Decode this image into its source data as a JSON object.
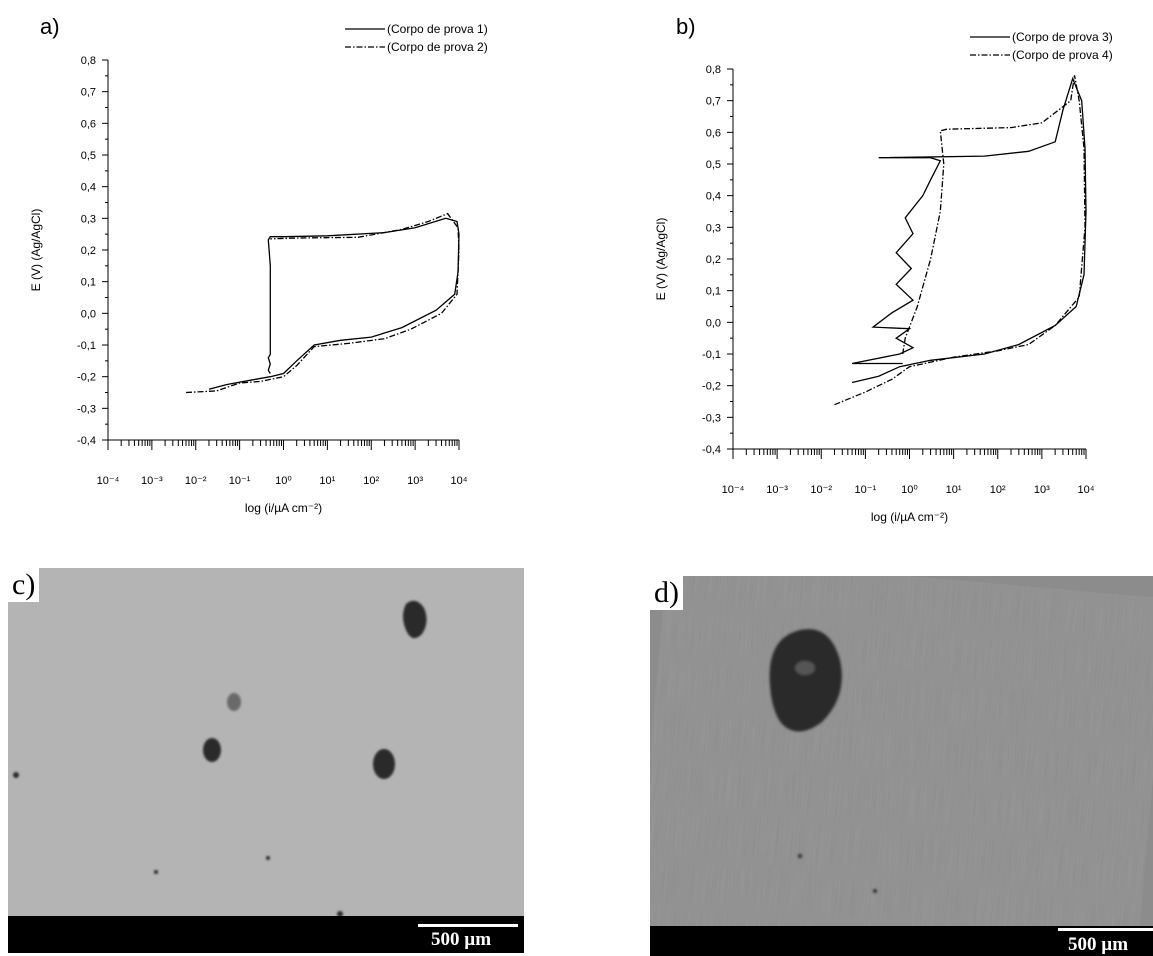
{
  "panels": {
    "a": "a)",
    "b": "b)",
    "c": "c)",
    "d": "d)"
  },
  "chart_data": [
    {
      "type": "line",
      "panel": "a)",
      "xlabel": "log (i/µA cm⁻²)",
      "ylabel": "E (V) (Ag/AgCl)",
      "x_scale": "log",
      "xlim": [
        0.0001,
        10000
      ],
      "ylim": [
        -0.4,
        0.8
      ],
      "x_tick_labels": [
        "10⁻⁴",
        "10⁻³",
        "10⁻²",
        "10⁻¹",
        "10⁰",
        "10¹",
        "10²",
        "10³",
        "10⁴"
      ],
      "y_tick_labels": [
        "-0,4",
        "-0,3",
        "-0,2",
        "-0,1",
        "0,0",
        "0,1",
        "0,2",
        "0,3",
        "0,4",
        "0,5",
        "0,6",
        "0,7",
        "0,8"
      ],
      "legend_position": "top-right",
      "grid": false,
      "series": [
        {
          "name": "(Corpo de prova 1)",
          "style": "solid",
          "points": [
            [
              0.02,
              -0.24
            ],
            [
              0.05,
              -0.225
            ],
            [
              0.2,
              -0.21
            ],
            [
              0.5,
              -0.2
            ],
            [
              1,
              -0.19
            ],
            [
              2,
              -0.15
            ],
            [
              5,
              -0.1
            ],
            [
              20,
              -0.085
            ],
            [
              100,
              -0.075
            ],
            [
              500,
              -0.045
            ],
            [
              3000,
              0.01
            ],
            [
              8000,
              0.06
            ],
            [
              9500,
              0.13
            ],
            [
              10000,
              0.25
            ],
            [
              9000,
              0.29
            ],
            [
              5000,
              0.3
            ],
            [
              1000,
              0.27
            ],
            [
              200,
              0.255
            ],
            [
              10,
              0.245
            ],
            [
              1,
              0.242
            ],
            [
              0.5,
              0.242
            ],
            [
              0.45,
              0.232
            ],
            [
              0.5,
              0.15
            ],
            [
              0.5,
              0.05
            ],
            [
              0.5,
              -0.05
            ],
            [
              0.5,
              -0.13
            ],
            [
              0.45,
              -0.14
            ],
            [
              0.5,
              -0.16
            ],
            [
              0.45,
              -0.18
            ],
            [
              0.5,
              -0.19
            ]
          ]
        },
        {
          "name": "(Corpo de prova 2)",
          "style": "dashdot",
          "points": [
            [
              0.006,
              -0.25
            ],
            [
              0.03,
              -0.245
            ],
            [
              0.1,
              -0.22
            ],
            [
              0.3,
              -0.215
            ],
            [
              1,
              -0.2
            ],
            [
              2,
              -0.165
            ],
            [
              5,
              -0.105
            ],
            [
              30,
              -0.095
            ],
            [
              200,
              -0.08
            ],
            [
              800,
              -0.05
            ],
            [
              4000,
              0.0
            ],
            [
              9000,
              0.06
            ],
            [
              10000,
              0.2
            ],
            [
              9500,
              0.27
            ],
            [
              5500,
              0.315
            ],
            [
              2000,
              0.29
            ],
            [
              500,
              0.265
            ],
            [
              50,
              0.24
            ],
            [
              2,
              0.238
            ],
            [
              0.5,
              0.235
            ]
          ]
        }
      ]
    },
    {
      "type": "line",
      "panel": "b)",
      "xlabel": "log (i/µA cm⁻²)",
      "ylabel": "E (V) (Ag/AgCl)",
      "x_scale": "log",
      "xlim": [
        0.0001,
        10000
      ],
      "ylim": [
        -0.4,
        0.8
      ],
      "x_tick_labels": [
        "10⁻⁴",
        "10⁻³",
        "10⁻²",
        "10⁻¹",
        "10⁰",
        "10¹",
        "10²",
        "10³",
        "10⁴"
      ],
      "y_tick_labels": [
        "-0,4",
        "-0,3",
        "-0,2",
        "-0,1",
        "0,0",
        "0,1",
        "0,2",
        "0,3",
        "0,4",
        "0,5",
        "0,6",
        "0,7",
        "0,8"
      ],
      "legend_position": "top-right",
      "grid": false,
      "series": [
        {
          "name": "(Corpo de prova 3)",
          "style": "solid",
          "points": [
            [
              0.05,
              -0.19
            ],
            [
              0.2,
              -0.17
            ],
            [
              0.6,
              -0.14
            ],
            [
              3,
              -0.12
            ],
            [
              50,
              -0.1
            ],
            [
              300,
              -0.07
            ],
            [
              2000,
              -0.01
            ],
            [
              6000,
              0.05
            ],
            [
              9000,
              0.15
            ],
            [
              10000,
              0.35
            ],
            [
              9500,
              0.55
            ],
            [
              8000,
              0.7
            ],
            [
              5000,
              0.77
            ],
            [
              3000,
              0.67
            ],
            [
              2000,
              0.57
            ],
            [
              500,
              0.54
            ],
            [
              50,
              0.525
            ],
            [
              0.2,
              0.52
            ],
            [
              3,
              0.52
            ],
            [
              5,
              0.51
            ],
            [
              3,
              0.45
            ],
            [
              2,
              0.4
            ],
            [
              0.8,
              0.33
            ],
            [
              1.2,
              0.28
            ],
            [
              0.5,
              0.22
            ],
            [
              1.1,
              0.17
            ],
            [
              0.5,
              0.12
            ],
            [
              1.2,
              0.07
            ],
            [
              0.4,
              0.03
            ],
            [
              0.15,
              -0.015
            ],
            [
              1,
              -0.02
            ],
            [
              0.5,
              -0.05
            ],
            [
              1.2,
              -0.08
            ],
            [
              0.6,
              -0.1
            ],
            [
              0.05,
              -0.13
            ],
            [
              0.7,
              -0.13
            ]
          ]
        },
        {
          "name": "(Corpo de prova 4)",
          "style": "dashdot",
          "points": [
            [
              0.02,
              -0.26
            ],
            [
              0.1,
              -0.22
            ],
            [
              0.4,
              -0.18
            ],
            [
              1,
              -0.14
            ],
            [
              10,
              -0.11
            ],
            [
              100,
              -0.09
            ],
            [
              500,
              -0.07
            ],
            [
              2000,
              -0.01
            ],
            [
              7000,
              0.08
            ],
            [
              9500,
              0.3
            ],
            [
              9000,
              0.55
            ],
            [
              7000,
              0.7
            ],
            [
              5500,
              0.78
            ],
            [
              4500,
              0.7
            ],
            [
              1000,
              0.63
            ],
            [
              200,
              0.615
            ],
            [
              7,
              0.61
            ],
            [
              5,
              0.605
            ],
            [
              6,
              0.5
            ],
            [
              5,
              0.35
            ],
            [
              3,
              0.2
            ],
            [
              1.5,
              0.05
            ],
            [
              0.8,
              -0.05
            ],
            [
              0.7,
              -0.1
            ]
          ]
        }
      ]
    }
  ],
  "photos": {
    "c": {
      "scale_label": "500 µm"
    },
    "d": {
      "scale_label": "500 µm"
    }
  }
}
